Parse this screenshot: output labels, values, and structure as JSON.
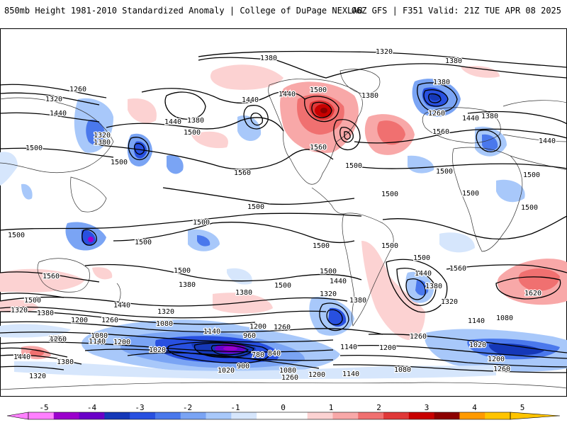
{
  "header": {
    "title_left": "850mb Height 1981-2010 Standardized Anomaly | College of DuPage NEXLAB",
    "title_right": "06Z GFS | F351 Valid: 21Z TUE APR 08 2025"
  },
  "map": {
    "contour_labels": [
      {
        "id": "c1320-n",
        "text": "1320"
      },
      {
        "id": "c1380-n1",
        "text": "1380"
      },
      {
        "id": "c1380-n2",
        "text": "1380"
      },
      {
        "id": "c1260-w",
        "text": "1260"
      },
      {
        "id": "c1320-w",
        "text": "1320"
      },
      {
        "id": "c1440-w",
        "text": "1440"
      },
      {
        "id": "c1320-asia",
        "text": "1320"
      },
      {
        "id": "c1380-asia",
        "text": "1380"
      },
      {
        "id": "c1500-w",
        "text": "1500"
      },
      {
        "id": "c1440-npac",
        "text": "1440"
      },
      {
        "id": "c1380-npac",
        "text": "1380"
      },
      {
        "id": "c1440-npac2",
        "text": "1440"
      },
      {
        "id": "c1500-npac",
        "text": "1500"
      },
      {
        "id": "c1500-npac2",
        "text": "1500"
      },
      {
        "id": "c1560-npac",
        "text": "1560"
      },
      {
        "id": "c1440-can",
        "text": "1440"
      },
      {
        "id": "c1500-can",
        "text": "1500"
      },
      {
        "id": "c1380-can",
        "text": "1380"
      },
      {
        "id": "c1560-us",
        "text": "1560"
      },
      {
        "id": "c1500-us",
        "text": "1500"
      },
      {
        "id": "c1560-atl",
        "text": "1560"
      },
      {
        "id": "c1380-eur",
        "text": "1380"
      },
      {
        "id": "c1260-eur",
        "text": "1260"
      },
      {
        "id": "c1440-eur",
        "text": "1440"
      },
      {
        "id": "c1380-eur2",
        "text": "1380"
      },
      {
        "id": "c1440-e",
        "text": "1440"
      },
      {
        "id": "c1500-atl",
        "text": "1500"
      },
      {
        "id": "c1500-afr",
        "text": "1500"
      },
      {
        "id": "c1500-atl2",
        "text": "1500"
      },
      {
        "id": "c1500-afr2",
        "text": "1500"
      },
      {
        "id": "c1500-eq",
        "text": "1500"
      },
      {
        "id": "c1500-wp",
        "text": "1500"
      },
      {
        "id": "c1500-wp2",
        "text": "1500"
      },
      {
        "id": "c1500-sp",
        "text": "1500"
      },
      {
        "id": "c1500-sp2",
        "text": "1500"
      },
      {
        "id": "c1500-sam",
        "text": "1500"
      },
      {
        "id": "c1500-sam2",
        "text": "1500"
      },
      {
        "id": "c1560-sw",
        "text": "1560"
      },
      {
        "id": "c1500-sw",
        "text": "1500"
      },
      {
        "id": "c1380-sw",
        "text": "1380"
      },
      {
        "id": "c1320-sw",
        "text": "1320"
      },
      {
        "id": "c1380-sw2",
        "text": "1380"
      },
      {
        "id": "c1500-sp3",
        "text": "1500"
      },
      {
        "id": "c1380-sp",
        "text": "1380"
      },
      {
        "id": "c1500-sp4",
        "text": "1500"
      },
      {
        "id": "c1500-sp5",
        "text": "1500"
      },
      {
        "id": "c1440-sp",
        "text": "1440"
      },
      {
        "id": "c1440-sp2",
        "text": "1440"
      },
      {
        "id": "c1320-sp",
        "text": "1320"
      },
      {
        "id": "c1320-sp2",
        "text": "1320"
      },
      {
        "id": "c1380-sp2",
        "text": "1380"
      },
      {
        "id": "c1500-satl",
        "text": "1500"
      },
      {
        "id": "c1440-satl",
        "text": "1440"
      },
      {
        "id": "c1380-satl",
        "text": "1380"
      },
      {
        "id": "c1320-satl",
        "text": "1320"
      },
      {
        "id": "c1560-sio",
        "text": "1560"
      },
      {
        "id": "c1620-sio",
        "text": "1620"
      },
      {
        "id": "c1260-s",
        "text": "1260"
      },
      {
        "id": "c1200-s",
        "text": "1200"
      },
      {
        "id": "c1260-s2",
        "text": "1260"
      },
      {
        "id": "c1080-s",
        "text": "1080"
      },
      {
        "id": "c1140-s",
        "text": "1140"
      },
      {
        "id": "c1200-s2",
        "text": "1200"
      },
      {
        "id": "c1260-s3",
        "text": "1260"
      },
      {
        "id": "c1080-s2",
        "text": "1080"
      },
      {
        "id": "c1140-s2",
        "text": "1140"
      },
      {
        "id": "c1200-s3",
        "text": "1200"
      },
      {
        "id": "c1140-s3",
        "text": "1140"
      },
      {
        "id": "c1020-s",
        "text": "1020"
      },
      {
        "id": "c960-s",
        "text": "960"
      },
      {
        "id": "c780-s",
        "text": "780"
      },
      {
        "id": "c840-s",
        "text": "840"
      },
      {
        "id": "c900-s",
        "text": "900"
      },
      {
        "id": "c1020-s2",
        "text": "1020"
      },
      {
        "id": "c1080-s3",
        "text": "1080"
      },
      {
        "id": "c1260-s4",
        "text": "1260"
      },
      {
        "id": "c1200-s4",
        "text": "1200"
      },
      {
        "id": "c1140-s4",
        "text": "1140"
      },
      {
        "id": "c1080-s4",
        "text": "1080"
      },
      {
        "id": "c1260-s5",
        "text": "1260"
      },
      {
        "id": "c1200-s5",
        "text": "1200"
      },
      {
        "id": "c1140-s5",
        "text": "1140"
      },
      {
        "id": "c1080-s5",
        "text": "1080"
      },
      {
        "id": "c1020-s3",
        "text": "1020"
      },
      {
        "id": "c1200-s6",
        "text": "1200"
      },
      {
        "id": "c1260-s6",
        "text": "1260"
      },
      {
        "id": "c1440-sw2",
        "text": "1440"
      },
      {
        "id": "c1380-sw3",
        "text": "1380"
      },
      {
        "id": "c1320-sw3",
        "text": "1320"
      },
      {
        "id": "c1260-sw",
        "text": "1260"
      }
    ]
  },
  "legend": {
    "tick_labels": [
      "-5",
      "-4",
      "-3",
      "-2",
      "-1",
      "0",
      "1",
      "2",
      "3",
      "4",
      "5"
    ],
    "colors": [
      "#ff80ff",
      "#9b00cc",
      "#6a00c8",
      "#1538b8",
      "#2850e0",
      "#4a78ec",
      "#7aa4f4",
      "#a8c8fa",
      "#d6e6fc",
      "#ffffff",
      "#ffffff",
      "#fcd2d2",
      "#f8a8a8",
      "#f07070",
      "#e03838",
      "#c80000",
      "#8c0000",
      "#ff9a00",
      "#ffc400"
    ]
  }
}
